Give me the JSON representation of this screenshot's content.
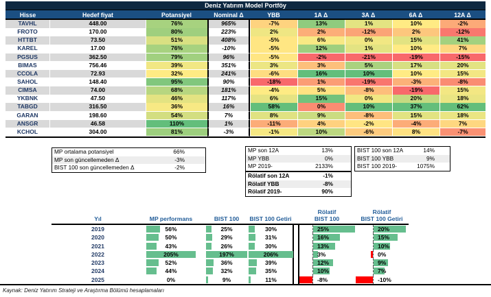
{
  "colors": {
    "title_bg": "#0E2841",
    "header_bg": "#1B4F82",
    "stripe": "#D9D9D9",
    "box_stripe": "#EDEDED",
    "navy_text": "#1F3864",
    "perf_header_text": "#215C98",
    "bar_green": "#66BE8E",
    "bar_red": "#FF0000",
    "scale_red": "#F8696B",
    "scale_yellow": "#FFEB84",
    "scale_green": "#63BE7B"
  },
  "portfolio_table": {
    "title": "Deniz Yatırım Model Portföy",
    "columns": [
      "Hisse",
      "Hedef fiyat",
      "Potansiyel",
      "Nominal Δ",
      "YBB",
      "1A Δ",
      "3A Δ",
      "6A Δ",
      "12A Δ"
    ],
    "rows": [
      {
        "hisse": "TAVHL",
        "hedef_fiyat": "448.00",
        "potansiyel": 76,
        "nominal": 965,
        "ybb": -7,
        "a1": 13,
        "a3": 1,
        "a6": 10,
        "a12": -2
      },
      {
        "hisse": "FROTO",
        "hedef_fiyat": "170.00",
        "potansiyel": 80,
        "nominal": 223,
        "ybb": 2,
        "a1": 2,
        "a3": -12,
        "a6": 2,
        "a12": -12
      },
      {
        "hisse": "HTTBT",
        "hedef_fiyat": "73.50",
        "potansiyel": 51,
        "nominal": 408,
        "ybb": -5,
        "a1": 6,
        "a3": 0,
        "a6": 15,
        "a12": 41
      },
      {
        "hisse": "KAREL",
        "hedef_fiyat": "17.00",
        "potansiyel": 76,
        "nominal": -10,
        "ybb": -5,
        "a1": 12,
        "a3": 1,
        "a6": 10,
        "a12": 7
      },
      {
        "hisse": "PGSUS",
        "hedef_fiyat": "362.50",
        "potansiyel": 79,
        "nominal": 96,
        "ybb": -5,
        "a1": -2,
        "a3": -21,
        "a6": -19,
        "a12": -15
      },
      {
        "hisse": "BIMAS",
        "hedef_fiyat": "756.46",
        "potansiyel": 39,
        "nominal": 351,
        "ybb": 3,
        "a1": 3,
        "a3": 5,
        "a6": 17,
        "a12": 20
      },
      {
        "hisse": "CCOLA",
        "hedef_fiyat": "72.93",
        "potansiyel": 32,
        "nominal": 241,
        "ybb": -6,
        "a1": 16,
        "a3": 10,
        "a6": 10,
        "a12": 15
      },
      {
        "hisse": "SAHOL",
        "hedef_fiyat": "148.40",
        "potansiyel": 95,
        "nominal": 90,
        "ybb": -18,
        "a1": 1,
        "a3": -19,
        "a6": -3,
        "a12": -8
      },
      {
        "hisse": "CIMSA",
        "hedef_fiyat": "74.00",
        "potansiyel": 68,
        "nominal": 181,
        "ybb": -4,
        "a1": 5,
        "a3": -8,
        "a6": -19,
        "a12": 15
      },
      {
        "hisse": "YKBNK",
        "hedef_fiyat": "47.50",
        "potansiyel": 46,
        "nominal": 117,
        "ybb": 6,
        "a1": 15,
        "a3": 0,
        "a6": 20,
        "a12": 18
      },
      {
        "hisse": "TABGD",
        "hedef_fiyat": "316.50",
        "potansiyel": 36,
        "nominal": 16,
        "ybb": 58,
        "a1": 0,
        "a3": 10,
        "a6": 37,
        "a12": 62
      },
      {
        "hisse": "GARAN",
        "hedef_fiyat": "198.60",
        "potansiyel": 54,
        "nominal": 7,
        "ybb": 8,
        "a1": 9,
        "a3": -8,
        "a6": 15,
        "a12": 18
      },
      {
        "hisse": "ANSGR",
        "hedef_fiyat": "46.58",
        "potansiyel": 110,
        "nominal": 1,
        "ybb": -11,
        "a1": 4,
        "a3": -2,
        "a6": -4,
        "a12": 7
      },
      {
        "hisse": "KCHOL",
        "hedef_fiyat": "304.00",
        "potansiyel": 81,
        "nominal": -3,
        "ybb": -1,
        "a1": 10,
        "a3": -6,
        "a6": 8,
        "a12": -7
      }
    ]
  },
  "summary_boxes": {
    "left": [
      {
        "label": "MP ortalama potansiyel",
        "value": "66%"
      },
      {
        "label": "MP son güncellemeden Δ",
        "value": "-3%"
      },
      {
        "label": "BIST 100 son güncellemeden Δ",
        "value": "-2%"
      }
    ],
    "middle": [
      {
        "label": "MP son 12A",
        "value": "13%"
      },
      {
        "label": "MP YBB",
        "value": "0%"
      },
      {
        "label": "MP 2019-",
        "value": "2133%"
      }
    ],
    "rolatif": [
      {
        "label": "Rölatif son 12A",
        "value": "-1%"
      },
      {
        "label": "Rölatif YBB",
        "value": "-8%"
      },
      {
        "label": "Rölatif 2019-",
        "value": "90%"
      }
    ],
    "right": [
      {
        "label": "BIST 100 son 12A",
        "value": "14%"
      },
      {
        "label": "BIST 100 YBB",
        "value": "9%"
      },
      {
        "label": "BIST 100 2019-",
        "value": "1075%"
      }
    ]
  },
  "performance_table": {
    "headers": {
      "yil": "Yıl",
      "mp": "MP performans",
      "bist": "BIST 100",
      "getiri": "BIST 100 Getiri",
      "rel_bist_l1": "Rölatif",
      "rel_bist_l2": "BIST 100",
      "rel_getiri_l1": "Rölatif",
      "rel_getiri_l2": "BIST 100 Getiri"
    },
    "rows": [
      {
        "yil": "2019",
        "mp": 56,
        "bist": 25,
        "getiri": 30,
        "rel_bist": 25,
        "rel_getiri": 20
      },
      {
        "yil": "2020",
        "mp": 50,
        "bist": 29,
        "getiri": 31,
        "rel_bist": 16,
        "rel_getiri": 15
      },
      {
        "yil": "2021",
        "mp": 43,
        "bist": 26,
        "getiri": 30,
        "rel_bist": 13,
        "rel_getiri": 10
      },
      {
        "yil": "2022",
        "mp": 205,
        "bist": 197,
        "getiri": 206,
        "rel_bist": 3,
        "rel_getiri": 0
      },
      {
        "yil": "2023",
        "mp": 52,
        "bist": 36,
        "getiri": 39,
        "rel_bist": 12,
        "rel_getiri": 9
      },
      {
        "yil": "2024",
        "mp": 44,
        "bist": 32,
        "getiri": 35,
        "rel_bist": 10,
        "rel_getiri": 7
      },
      {
        "yil": "2025",
        "mp": 0,
        "bist": 9,
        "getiri": 11,
        "rel_bist": -8,
        "rel_getiri": -10
      }
    ]
  },
  "footer": "Kaynak: Deniz Yatırım Strateji ve Araştırma Bölümü hesaplamaları"
}
